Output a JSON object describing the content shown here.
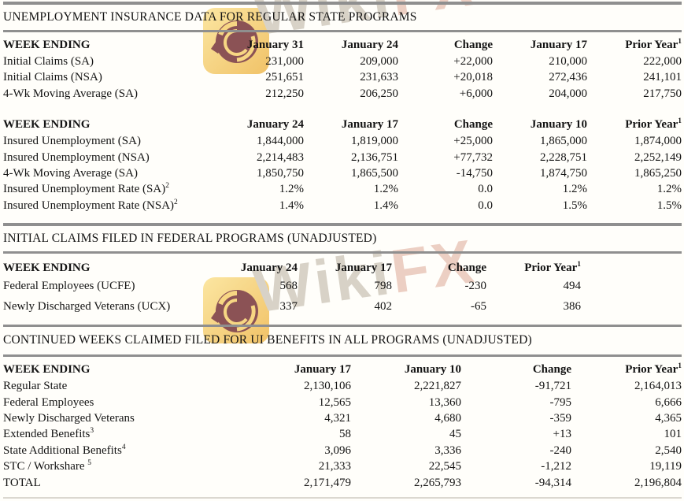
{
  "page": {
    "background": "#fffefa",
    "text_color": "#141414",
    "rule_color": "#8f8f8f",
    "faint_rule_color": "#dbd8d0"
  },
  "watermark": {
    "brand_part_gray": "Wiki",
    "brand_part_pink": "FX",
    "logo_yellow": "#f2bf4e",
    "logo_maroon": "#6b2327"
  },
  "sections": [
    {
      "title": "UNEMPLOYMENT INSURANCE DATA FOR REGULAR STATE PROGRAMS"
    },
    {
      "title": "INITIAL CLAIMS FILED IN FEDERAL PROGRAMS (UNADJUSTED)"
    },
    {
      "title": "CONTINUED WEEKS CLAIMED FILED FOR UI BENEFITS IN ALL PROGRAMS (UNADJUSTED)"
    }
  ],
  "tables": [
    {
      "header": [
        {
          "t": "WEEK ENDING"
        },
        {
          "t": "January 31"
        },
        {
          "t": "January 24"
        },
        {
          "t": "Change"
        },
        {
          "t": "January 17"
        },
        {
          "t": "Prior Year",
          "s": "1"
        }
      ],
      "rows": [
        {
          "label": {
            "t": "Initial Claims (SA)"
          },
          "values": [
            "231,000",
            "209,000",
            "+22,000",
            "210,000",
            "222,000"
          ]
        },
        {
          "label": {
            "t": "Initial Claims (NSA)"
          },
          "values": [
            "251,651",
            "231,633",
            "+20,018",
            "272,436",
            "241,101"
          ]
        },
        {
          "label": {
            "t": "4-Wk Moving Average (SA)"
          },
          "values": [
            "212,250",
            "206,250",
            "+6,000",
            "204,000",
            "217,750"
          ]
        }
      ]
    },
    {
      "header": [
        {
          "t": "WEEK ENDING"
        },
        {
          "t": "January 24"
        },
        {
          "t": "January 17"
        },
        {
          "t": "Change"
        },
        {
          "t": "January 10"
        },
        {
          "t": "Prior Year",
          "s": "1"
        }
      ],
      "rows": [
        {
          "label": {
            "t": "Insured Unemployment (SA)"
          },
          "values": [
            "1,844,000",
            "1,819,000",
            "+25,000",
            "1,865,000",
            "1,874,000"
          ]
        },
        {
          "label": {
            "t": "Insured Unemployment (NSA)"
          },
          "values": [
            "2,214,483",
            "2,136,751",
            "+77,732",
            "2,228,751",
            "2,252,149"
          ]
        },
        {
          "label": {
            "t": "4-Wk Moving Average (SA)"
          },
          "values": [
            "1,850,750",
            "1,865,500",
            "-14,750",
            "1,874,750",
            "1,865,250"
          ]
        },
        {
          "label": {
            "t": "Insured Unemployment Rate (SA)",
            "s": "2"
          },
          "values": [
            "1.2%",
            "1.2%",
            "0.0",
            "1.2%",
            "1.2%"
          ]
        },
        {
          "label": {
            "t": "Insured Unemployment Rate (NSA)",
            "s": "2"
          },
          "values": [
            "1.4%",
            "1.4%",
            "0.0",
            "1.5%",
            "1.5%"
          ]
        }
      ]
    },
    {
      "header": [
        {
          "t": "WEEK ENDING"
        },
        {
          "t": "January 24"
        },
        {
          "t": "January 17"
        },
        {
          "t": "Change"
        },
        {
          "t": "Prior Year",
          "s": "1"
        }
      ],
      "rows": [
        {
          "label": {
            "t": "Federal Employees (UCFE)"
          },
          "values": [
            "568",
            "798",
            "-230",
            "494"
          ]
        },
        {
          "label": {
            "t": "Newly Discharged Veterans (UCX)"
          },
          "values": [
            "337",
            "402",
            "-65",
            "386"
          ]
        }
      ]
    },
    {
      "header": [
        {
          "t": "WEEK ENDING"
        },
        {
          "t": "January 17"
        },
        {
          "t": "January 10"
        },
        {
          "t": "Change"
        },
        {
          "t": "Prior Year",
          "s": "1"
        }
      ],
      "rows": [
        {
          "label": {
            "t": "Regular State"
          },
          "values": [
            "2,130,106",
            "2,221,827",
            "-91,721",
            "2,164,013"
          ]
        },
        {
          "label": {
            "t": "Federal Employees"
          },
          "values": [
            "12,565",
            "13,360",
            "-795",
            "6,666"
          ]
        },
        {
          "label": {
            "t": "Newly Discharged Veterans"
          },
          "values": [
            "4,321",
            "4,680",
            "-359",
            "4,365"
          ]
        },
        {
          "label": {
            "t": "Extended Benefits",
            "s": "3"
          },
          "values": [
            "58",
            "45",
            "+13",
            "101"
          ]
        },
        {
          "label": {
            "t": "State Additional Benefits",
            "s": "4"
          },
          "values": [
            "3,096",
            "3,336",
            "-240",
            "2,540"
          ]
        },
        {
          "label": {
            "t": "STC / Workshare ",
            "s": "5"
          },
          "values": [
            "21,333",
            "22,545",
            "-1,212",
            "19,119"
          ]
        },
        {
          "label": {
            "t": "TOTAL"
          },
          "values": [
            "2,171,479",
            "2,265,793",
            "-94,314",
            "2,196,804"
          ]
        }
      ]
    }
  ]
}
